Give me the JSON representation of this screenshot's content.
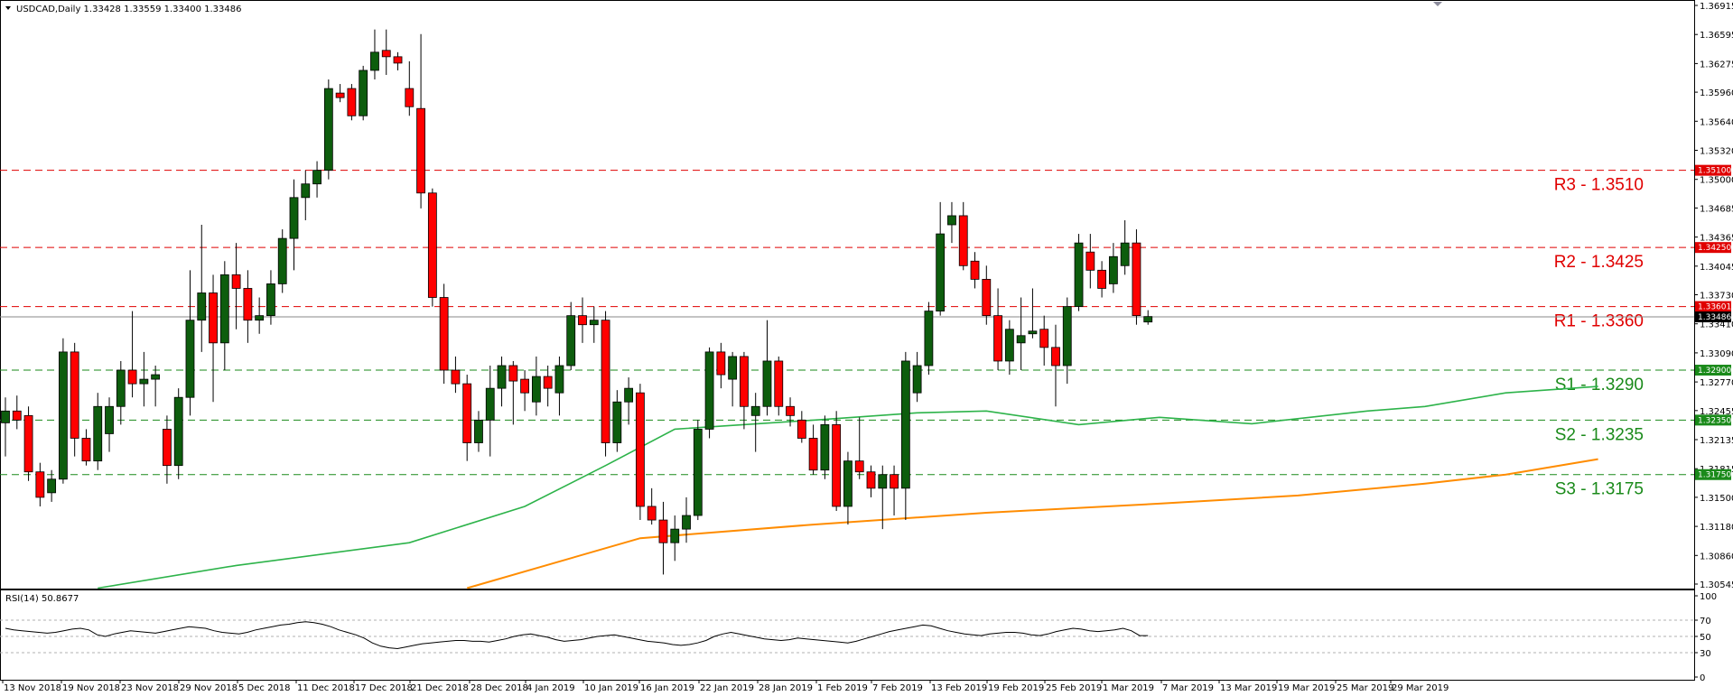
{
  "header": {
    "symbol_line": "USDCAD,Daily  1.33428 1.33559 1.33400 1.33486",
    "rsi_label": "RSI(14) 50.8677"
  },
  "colors": {
    "bull": "#0d5d0d",
    "bear": "#ff0000",
    "ma_fast": "#2db34a",
    "ma_slow": "#ff8c00",
    "resistance": "#e00000",
    "support": "#1a8a1a",
    "current": "#8a8a8a",
    "current_tag": "#000000"
  },
  "chart_data": {
    "type": "candlestick",
    "y_axis_ticks": [
      "1.36915",
      "1.36595",
      "1.36275",
      "1.35960",
      "1.35640",
      "1.35320",
      "1.35000",
      "1.34685",
      "1.34365",
      "1.34045",
      "1.33730",
      "1.33410",
      "1.33090",
      "1.32770",
      "1.32455",
      "1.32135",
      "1.31815",
      "1.31500",
      "1.31180",
      "1.30860",
      "1.30545"
    ],
    "ylim": [
      1.30545,
      1.36915
    ],
    "x_axis_labels": [
      "13 Nov 2018",
      "19 Nov 2018",
      "23 Nov 2018",
      "29 Nov 2018",
      "5 Dec 2018",
      "11 Dec 2018",
      "17 Dec 2018",
      "21 Dec 2018",
      "28 Dec 2018",
      "4 Jan 2019",
      "10 Jan 2019",
      "16 Jan 2019",
      "22 Jan 2019",
      "28 Jan 2019",
      "1 Feb 2019",
      "7 Feb 2019",
      "13 Feb 2019",
      "19 Feb 2019",
      "25 Feb 2019",
      "1 Mar 2019",
      "7 Mar 2019",
      "13 Mar 2019",
      "19 Mar 2019",
      "25 Mar 2019",
      "29 Mar 2019"
    ],
    "levels": [
      {
        "label": "R3 - 1.3510",
        "value": 1.351,
        "tag": "1.35100",
        "kind": "resistance"
      },
      {
        "label": "R2 - 1.3425",
        "value": 1.3425,
        "tag": "1.34250",
        "kind": "resistance"
      },
      {
        "label": "R1 - 1.3360",
        "value": 1.336,
        "tag": "1.33601",
        "kind": "resistance"
      },
      {
        "label": "S1 -  1.3290",
        "value": 1.329,
        "tag": "1.32900",
        "kind": "support"
      },
      {
        "label": "S2 - 1.3235",
        "value": 1.3235,
        "tag": "1.32350",
        "kind": "support"
      },
      {
        "label": "S3 - 1.3175",
        "value": 1.3175,
        "tag": "1.31750",
        "kind": "support"
      }
    ],
    "current_price": {
      "value": 1.33486,
      "tag": "1.33486"
    },
    "candles": [
      [
        1.3232,
        1.326,
        1.3195,
        1.3245
      ],
      [
        1.3245,
        1.3262,
        1.3225,
        1.3235
      ],
      [
        1.324,
        1.325,
        1.3168,
        1.3178
      ],
      [
        1.3178,
        1.3188,
        1.314,
        1.315
      ],
      [
        1.3155,
        1.318,
        1.3145,
        1.317
      ],
      [
        1.317,
        1.3325,
        1.3165,
        1.331
      ],
      [
        1.331,
        1.332,
        1.3195,
        1.3215
      ],
      [
        1.3215,
        1.3225,
        1.3185,
        1.319
      ],
      [
        1.319,
        1.3265,
        1.318,
        1.325
      ],
      [
        1.322,
        1.326,
        1.32,
        1.325
      ],
      [
        1.325,
        1.33,
        1.323,
        1.329
      ],
      [
        1.329,
        1.3355,
        1.326,
        1.3275
      ],
      [
        1.3275,
        1.331,
        1.325,
        1.328
      ],
      [
        1.328,
        1.3295,
        1.325,
        1.3285
      ],
      [
        1.3225,
        1.324,
        1.3165,
        1.3185
      ],
      [
        1.3185,
        1.327,
        1.317,
        1.326
      ],
      [
        1.326,
        1.34,
        1.324,
        1.3345
      ],
      [
        1.3345,
        1.345,
        1.331,
        1.3375
      ],
      [
        1.3375,
        1.3395,
        1.3255,
        1.332
      ],
      [
        1.332,
        1.341,
        1.329,
        1.3395
      ],
      [
        1.3395,
        1.343,
        1.3335,
        1.338
      ],
      [
        1.338,
        1.34,
        1.332,
        1.3345
      ],
      [
        1.3345,
        1.337,
        1.333,
        1.335
      ],
      [
        1.335,
        1.34,
        1.334,
        1.3385
      ],
      [
        1.3385,
        1.3445,
        1.3375,
        1.3435
      ],
      [
        1.3435,
        1.35,
        1.34,
        1.348
      ],
      [
        1.348,
        1.351,
        1.3455,
        1.3495
      ],
      [
        1.3495,
        1.352,
        1.348,
        1.351
      ],
      [
        1.351,
        1.361,
        1.35,
        1.36
      ],
      [
        1.3595,
        1.3605,
        1.3585,
        1.359
      ],
      [
        1.36,
        1.3605,
        1.3565,
        1.357
      ],
      [
        1.357,
        1.3625,
        1.3565,
        1.362
      ],
      [
        1.362,
        1.3665,
        1.361,
        1.364
      ],
      [
        1.3642,
        1.3665,
        1.3615,
        1.3635
      ],
      [
        1.3635,
        1.364,
        1.362,
        1.3628
      ],
      [
        1.36,
        1.363,
        1.357,
        1.358
      ],
      [
        1.3578,
        1.366,
        1.3468,
        1.3485
      ],
      [
        1.3485,
        1.349,
        1.336,
        1.337
      ],
      [
        1.337,
        1.3385,
        1.3275,
        1.329
      ],
      [
        1.329,
        1.3305,
        1.3265,
        1.3275
      ],
      [
        1.3275,
        1.3285,
        1.319,
        1.321
      ],
      [
        1.321,
        1.3245,
        1.32,
        1.3235
      ],
      [
        1.3235,
        1.3295,
        1.3195,
        1.327
      ],
      [
        1.327,
        1.3305,
        1.325,
        1.3295
      ],
      [
        1.3295,
        1.33,
        1.323,
        1.3278
      ],
      [
        1.328,
        1.329,
        1.3245,
        1.3265
      ],
      [
        1.3255,
        1.3305,
        1.324,
        1.3283
      ],
      [
        1.3283,
        1.3295,
        1.325,
        1.327
      ],
      [
        1.3265,
        1.3305,
        1.324,
        1.3295
      ],
      [
        1.3295,
        1.3365,
        1.329,
        1.335
      ],
      [
        1.335,
        1.337,
        1.332,
        1.334
      ],
      [
        1.334,
        1.336,
        1.332,
        1.3345
      ],
      [
        1.3345,
        1.3355,
        1.3195,
        1.321
      ],
      [
        1.321,
        1.3268,
        1.32,
        1.3255
      ],
      [
        1.3255,
        1.3282,
        1.323,
        1.327
      ],
      [
        1.3265,
        1.3275,
        1.3125,
        1.314
      ],
      [
        1.314,
        1.316,
        1.312,
        1.3125
      ],
      [
        1.3125,
        1.3145,
        1.3065,
        1.31
      ],
      [
        1.31,
        1.313,
        1.308,
        1.3115
      ],
      [
        1.3115,
        1.315,
        1.31,
        1.313
      ],
      [
        1.313,
        1.3235,
        1.3125,
        1.3225
      ],
      [
        1.3225,
        1.3315,
        1.3215,
        1.331
      ],
      [
        1.331,
        1.332,
        1.327,
        1.3285
      ],
      [
        1.328,
        1.331,
        1.325,
        1.3305
      ],
      [
        1.3305,
        1.331,
        1.3225,
        1.325
      ],
      [
        1.324,
        1.3265,
        1.32,
        1.325
      ],
      [
        1.325,
        1.3345,
        1.324,
        1.33
      ],
      [
        1.33,
        1.3305,
        1.324,
        1.325
      ],
      [
        1.325,
        1.326,
        1.3228,
        1.324
      ],
      [
        1.3235,
        1.3245,
        1.321,
        1.3215
      ],
      [
        1.3215,
        1.323,
        1.3175,
        1.318
      ],
      [
        1.318,
        1.324,
        1.317,
        1.323
      ],
      [
        1.323,
        1.3245,
        1.3135,
        1.314
      ],
      [
        1.314,
        1.32,
        1.312,
        1.319
      ],
      [
        1.319,
        1.3238,
        1.317,
        1.3178
      ],
      [
        1.3178,
        1.3185,
        1.315,
        1.316
      ],
      [
        1.316,
        1.3185,
        1.3115,
        1.3175
      ],
      [
        1.3175,
        1.3185,
        1.313,
        1.316
      ],
      [
        1.316,
        1.331,
        1.3125,
        1.33
      ],
      [
        1.3265,
        1.331,
        1.3255,
        1.3295
      ],
      [
        1.3295,
        1.3365,
        1.3285,
        1.3355
      ],
      [
        1.3355,
        1.3475,
        1.335,
        1.344
      ],
      [
        1.345,
        1.3475,
        1.343,
        1.346
      ],
      [
        1.346,
        1.3475,
        1.34,
        1.3405
      ],
      [
        1.341,
        1.342,
        1.338,
        1.339
      ],
      [
        1.339,
        1.3405,
        1.334,
        1.335
      ],
      [
        1.335,
        1.338,
        1.329,
        1.33
      ],
      [
        1.33,
        1.3345,
        1.3285,
        1.3335
      ],
      [
        1.332,
        1.337,
        1.329,
        1.3328
      ],
      [
        1.333,
        1.338,
        1.3325,
        1.3333
      ],
      [
        1.3335,
        1.335,
        1.3295,
        1.3315
      ],
      [
        1.3315,
        1.334,
        1.325,
        1.3295
      ],
      [
        1.3295,
        1.337,
        1.3275,
        1.336
      ],
      [
        1.336,
        1.344,
        1.3355,
        1.343
      ],
      [
        1.342,
        1.344,
        1.338,
        1.34
      ],
      [
        1.34,
        1.341,
        1.337,
        1.338
      ],
      [
        1.3385,
        1.343,
        1.3375,
        1.3415
      ],
      [
        1.3405,
        1.3455,
        1.3395,
        1.343
      ],
      [
        1.343,
        1.3445,
        1.334,
        1.335
      ],
      [
        1.3343,
        1.3356,
        1.334,
        1.3349
      ]
    ],
    "ma_fast": {
      "period_label": "",
      "points": [
        [
          8,
          1.305
        ],
        [
          20,
          1.3075
        ],
        [
          35,
          1.31
        ],
        [
          45,
          1.314
        ],
        [
          52,
          1.3185
        ],
        [
          58,
          1.3225
        ],
        [
          70,
          1.3235
        ],
        [
          79,
          1.3243
        ],
        [
          85,
          1.3245
        ],
        [
          93,
          1.323
        ],
        [
          100,
          1.3238
        ],
        [
          108,
          1.3231
        ],
        [
          118,
          1.3245
        ],
        [
          123,
          1.325
        ],
        [
          130,
          1.3265
        ],
        [
          138,
          1.3272
        ]
      ]
    },
    "ma_slow": {
      "period_label": "",
      "points": [
        [
          40,
          1.305
        ],
        [
          55,
          1.3105
        ],
        [
          70,
          1.312
        ],
        [
          85,
          1.3133
        ],
        [
          100,
          1.3143
        ],
        [
          112,
          1.3152
        ],
        [
          123,
          1.3165
        ],
        [
          130,
          1.3175
        ],
        [
          138,
          1.3192
        ]
      ]
    },
    "rsi": {
      "ticks": [
        100,
        70,
        50,
        30,
        0
      ],
      "values": [
        60,
        58,
        57,
        56,
        55,
        54,
        55,
        57,
        59,
        60,
        58,
        52,
        50,
        53,
        55,
        57,
        56,
        55,
        54,
        56,
        58,
        60,
        62,
        61,
        60,
        57,
        55,
        54,
        53,
        55,
        58,
        60,
        62,
        64,
        65,
        67,
        68,
        67,
        65,
        62,
        58,
        55,
        52,
        48,
        42,
        38,
        36,
        35,
        37,
        39,
        41,
        42,
        43,
        44,
        45,
        45,
        44,
        44,
        43,
        45,
        47,
        50,
        52,
        53,
        51,
        49,
        46,
        44,
        45,
        46,
        48,
        50,
        51,
        52,
        50,
        48,
        46,
        44,
        43,
        42,
        40,
        39,
        40,
        42,
        45,
        50,
        53,
        55,
        53,
        51,
        49,
        47,
        46,
        45,
        46,
        48,
        47,
        46,
        45,
        44,
        43,
        42,
        44,
        47,
        50,
        53,
        56,
        58,
        60,
        62,
        64,
        63,
        60,
        57,
        55,
        53,
        52,
        51,
        53,
        54,
        55,
        55,
        54,
        52,
        51,
        53,
        56,
        58,
        60,
        59,
        57,
        56,
        57,
        58,
        60,
        57,
        51,
        51
      ]
    }
  }
}
